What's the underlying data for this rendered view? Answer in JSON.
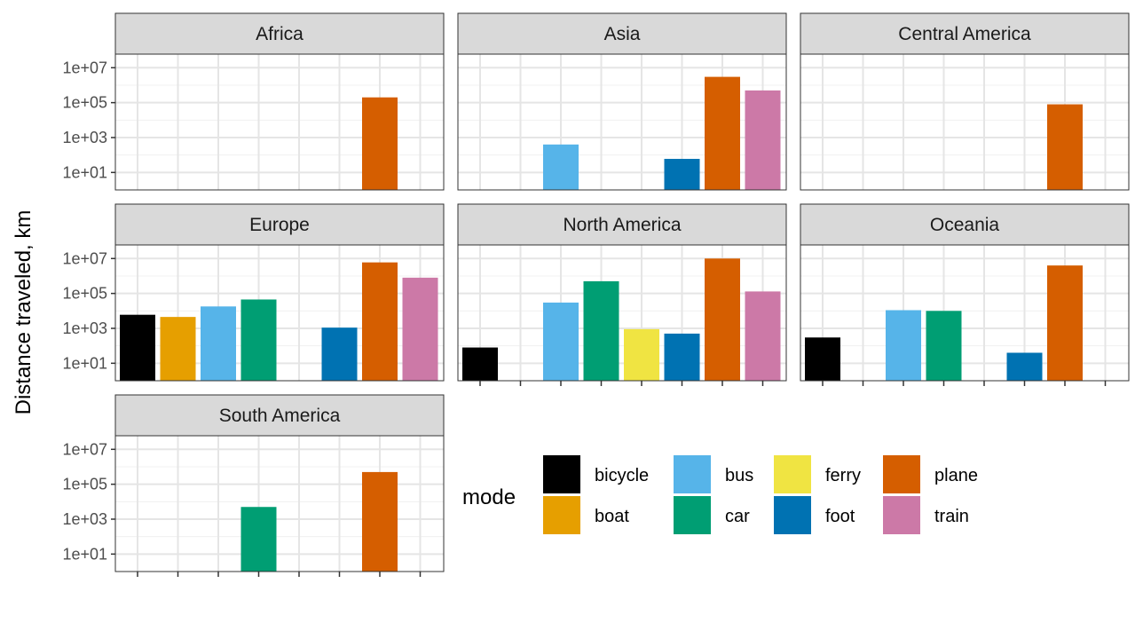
{
  "chart_data": {
    "type": "bar",
    "facet_by": "region",
    "y_scale": "log10",
    "ylabel": "Distance traveled, km",
    "y_ticks": [
      {
        "value": 10,
        "label": "1e+01"
      },
      {
        "value": 1000,
        "label": "1e+03"
      },
      {
        "value": 100000,
        "label": "1e+05"
      },
      {
        "value": 10000000,
        "label": "1e+07"
      }
    ],
    "y_range": [
      1,
      60000000
    ],
    "grid": true,
    "x_tick_labels_shown": false,
    "categories": [
      "bicycle",
      "boat",
      "bus",
      "car",
      "ferry",
      "foot",
      "plane",
      "train"
    ],
    "colors": {
      "bicycle": "#000000",
      "boat": "#E69F00",
      "bus": "#56B4E9",
      "car": "#009E73",
      "ferry": "#F0E442",
      "foot": "#0072B2",
      "plane": "#D55E00",
      "train": "#CC79A7"
    },
    "facets": [
      {
        "name": "Africa",
        "values": {
          "plane": 200000
        }
      },
      {
        "name": "Asia",
        "values": {
          "bus": 400,
          "foot": 60,
          "plane": 3000000,
          "train": 500000
        }
      },
      {
        "name": "Central America",
        "values": {
          "plane": 80000
        }
      },
      {
        "name": "Europe",
        "values": {
          "bicycle": 6000,
          "boat": 4500,
          "bus": 18000,
          "car": 45000,
          "foot": 1100,
          "plane": 6000000,
          "train": 800000
        }
      },
      {
        "name": "North America",
        "values": {
          "bicycle": 80,
          "bus": 30000,
          "car": 500000,
          "ferry": 900,
          "foot": 500,
          "plane": 10000000,
          "train": 130000
        }
      },
      {
        "name": "Oceania",
        "values": {
          "bicycle": 300,
          "bus": 11000,
          "car": 10000,
          "foot": 40,
          "plane": 4000000
        }
      },
      {
        "name": "South America",
        "values": {
          "car": 5000,
          "plane": 500000
        }
      }
    ],
    "legend": {
      "title": "mode",
      "position": "bottom-right",
      "columns": [
        [
          "bicycle",
          "boat"
        ],
        [
          "bus",
          "car"
        ],
        [
          "ferry",
          "foot"
        ],
        [
          "plane",
          "train"
        ]
      ]
    }
  }
}
